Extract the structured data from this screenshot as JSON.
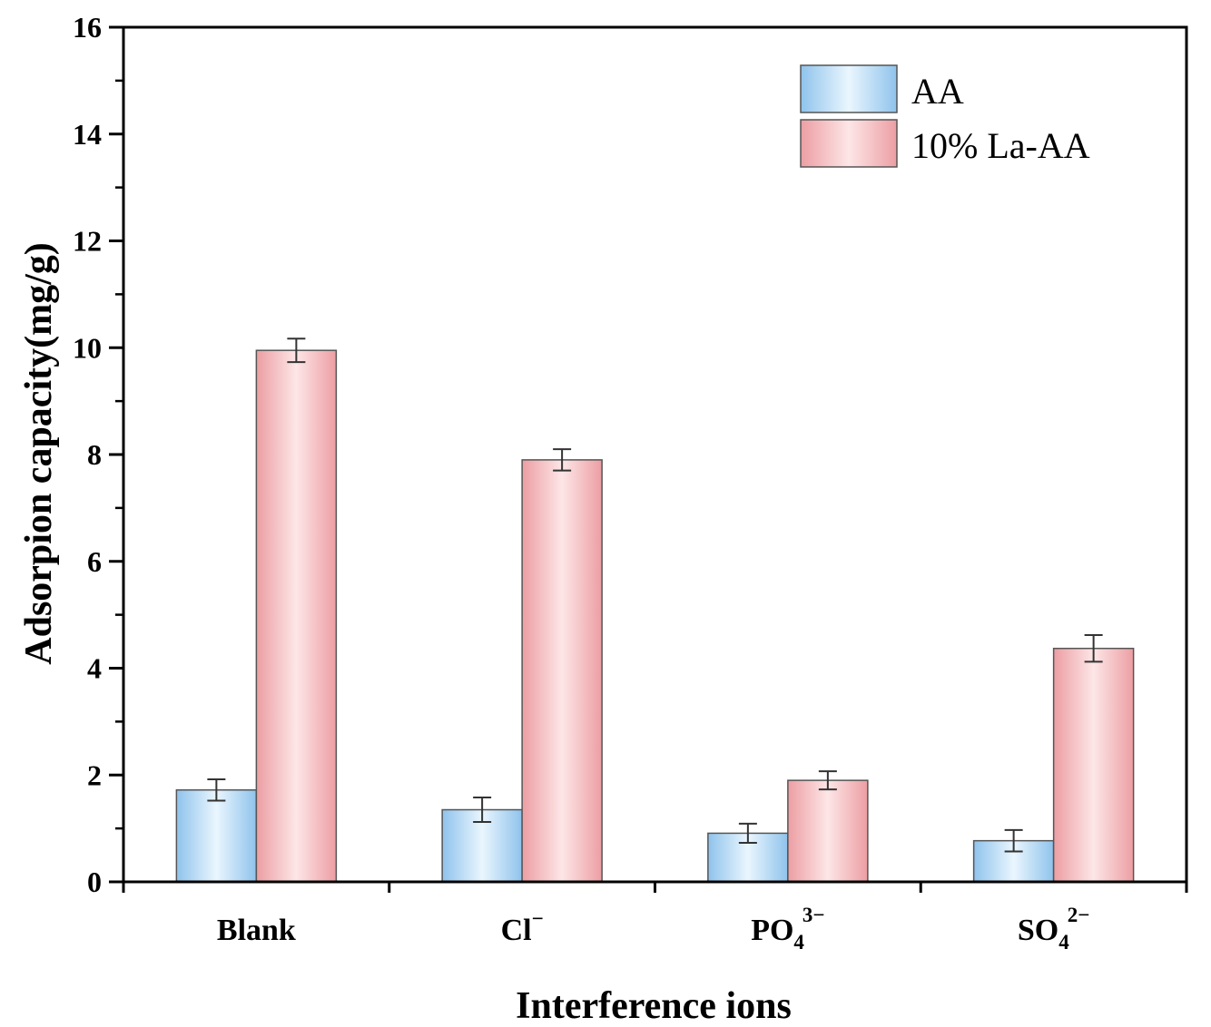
{
  "chart_data": {
    "type": "bar",
    "xlabel": "Interference ions",
    "ylabel": "Adsorpion capacity(mg/g)",
    "ylim": [
      0,
      16
    ],
    "yticks": [
      "0",
      "2",
      "4",
      "6",
      "8",
      "10",
      "12",
      "14",
      "16"
    ],
    "categories": [
      {
        "base": "Blank",
        "sub": "",
        "sup": ""
      },
      {
        "base": "Cl",
        "sub": "",
        "sup": "−"
      },
      {
        "base": "PO",
        "sub": "4",
        "sup": "3−"
      },
      {
        "base": "SO",
        "sub": "4",
        "sup": "2−"
      }
    ],
    "series": [
      {
        "name": "AA",
        "values": [
          1.72,
          1.35,
          0.91,
          0.77
        ],
        "errors": [
          0.2,
          0.23,
          0.18,
          0.2
        ],
        "color": "#b8dcf5"
      },
      {
        "name": "10% La-AA",
        "values": [
          9.95,
          7.9,
          1.9,
          4.37
        ],
        "errors": [
          0.22,
          0.2,
          0.17,
          0.25
        ],
        "color": "#f8c6c8"
      }
    ],
    "legend_position": "top-right",
    "grid": false
  }
}
